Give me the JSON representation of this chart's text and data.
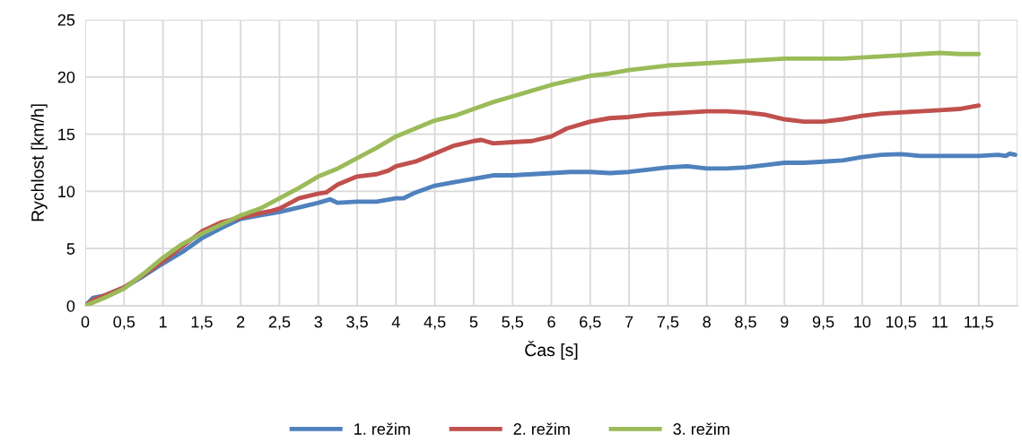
{
  "chart_data": {
    "type": "line",
    "xlabel": "Čas [s]",
    "ylabel": "Rychlost [km/h]",
    "xlim": [
      0,
      12
    ],
    "ylim": [
      0,
      25
    ],
    "yticks": [
      0,
      5,
      10,
      15,
      20,
      25
    ],
    "xticks": [
      0,
      {
        "value": 0.5,
        "label": "0,5"
      },
      1,
      {
        "value": 1.5,
        "label": "1,5"
      },
      2,
      {
        "value": 2.5,
        "label": "2,5"
      },
      3,
      {
        "value": 3.5,
        "label": "3,5"
      },
      4,
      {
        "value": 4.5,
        "label": "4,5"
      },
      5,
      {
        "value": 5.5,
        "label": "5,5"
      },
      6,
      {
        "value": 6.5,
        "label": "6,5"
      },
      7,
      {
        "value": 7.5,
        "label": "7,5"
      },
      8,
      {
        "value": 8.5,
        "label": "8,5"
      },
      9,
      {
        "value": 9.5,
        "label": "9,5"
      },
      10,
      {
        "value": 10.5,
        "label": "10,5"
      },
      11,
      {
        "value": 11.5,
        "label": "11,5"
      }
    ],
    "grid": true,
    "legend": "bottom",
    "marker": "none",
    "line_style": "solid",
    "series": [
      {
        "name": "1. režim",
        "color": "#4f81bd",
        "x": [
          0,
          0.1,
          0.25,
          0.5,
          0.75,
          1,
          1.25,
          1.5,
          1.75,
          2,
          2.25,
          2.5,
          2.75,
          3,
          3.15,
          3.25,
          3.5,
          3.75,
          4,
          4.1,
          4.25,
          4.5,
          4.75,
          5,
          5.25,
          5.5,
          5.75,
          6,
          6.25,
          6.5,
          6.75,
          7,
          7.25,
          7.5,
          7.75,
          8,
          8.25,
          8.5,
          8.75,
          9,
          9.25,
          9.5,
          9.75,
          10,
          10.25,
          10.5,
          10.75,
          11,
          11.25,
          11.5,
          11.75,
          11.85,
          11.9,
          11.97
        ],
        "values": [
          0,
          0.7,
          0.9,
          1.6,
          2.6,
          3.7,
          4.7,
          5.9,
          6.8,
          7.6,
          7.9,
          8.2,
          8.6,
          9.0,
          9.3,
          9.0,
          9.1,
          9.1,
          9.4,
          9.4,
          9.9,
          10.5,
          10.8,
          11.1,
          11.4,
          11.4,
          11.5,
          11.6,
          11.7,
          11.7,
          11.6,
          11.7,
          11.9,
          12.1,
          12.2,
          12.0,
          12.0,
          12.1,
          12.3,
          12.5,
          12.5,
          12.6,
          12.7,
          13.0,
          13.2,
          13.25,
          13.1,
          13.1,
          13.1,
          13.1,
          13.2,
          13.1,
          13.3,
          13.2
        ]
      },
      {
        "name": "2. režim",
        "color": "#c0504d",
        "x": [
          0,
          0.1,
          0.25,
          0.5,
          0.75,
          1,
          1.25,
          1.5,
          1.75,
          2,
          2.25,
          2.4,
          2.5,
          2.75,
          3,
          3.1,
          3.25,
          3.5,
          3.75,
          3.9,
          4,
          4.25,
          4.5,
          4.75,
          5,
          5.1,
          5.25,
          5.5,
          5.75,
          6,
          6.2,
          6.5,
          6.75,
          7,
          7.25,
          7.5,
          7.75,
          8,
          8.25,
          8.5,
          8.75,
          9,
          9.25,
          9.5,
          9.75,
          10,
          10.25,
          10.5,
          10.75,
          11,
          11.25,
          11.5
        ],
        "values": [
          0,
          0.5,
          0.9,
          1.6,
          2.7,
          3.9,
          5.2,
          6.5,
          7.3,
          7.7,
          8.1,
          8.3,
          8.5,
          9.4,
          9.8,
          9.9,
          10.6,
          11.3,
          11.5,
          11.8,
          12.2,
          12.6,
          13.3,
          14.0,
          14.4,
          14.5,
          14.2,
          14.3,
          14.4,
          14.8,
          15.5,
          16.1,
          16.4,
          16.5,
          16.7,
          16.8,
          16.9,
          17.0,
          17.0,
          16.9,
          16.7,
          16.3,
          16.1,
          16.1,
          16.3,
          16.6,
          16.8,
          16.9,
          17.0,
          17.1,
          17.2,
          17.5
        ]
      },
      {
        "name": "3. režim",
        "color": "#9bbb59",
        "x": [
          0,
          0.25,
          0.5,
          0.75,
          1,
          1.25,
          1.5,
          1.75,
          2,
          2.25,
          2.5,
          2.75,
          3,
          3.25,
          3.5,
          3.75,
          4,
          4.25,
          4.5,
          4.75,
          5,
          5.25,
          5.5,
          5.75,
          6,
          6.25,
          6.5,
          6.75,
          7,
          7.25,
          7.5,
          7.75,
          8,
          8.25,
          8.5,
          8.75,
          9,
          9.25,
          9.5,
          9.75,
          10,
          10.25,
          10.5,
          10.75,
          11,
          11.25,
          11.5
        ],
        "values": [
          0,
          0.7,
          1.5,
          2.8,
          4.2,
          5.4,
          6.3,
          7.1,
          7.9,
          8.5,
          9.4,
          10.3,
          11.3,
          12.0,
          12.9,
          13.8,
          14.8,
          15.5,
          16.2,
          16.6,
          17.2,
          17.8,
          18.3,
          18.8,
          19.3,
          19.7,
          20.1,
          20.3,
          20.6,
          20.8,
          21.0,
          21.1,
          21.2,
          21.3,
          21.4,
          21.5,
          21.6,
          21.6,
          21.6,
          21.6,
          21.7,
          21.8,
          21.9,
          22.0,
          22.1,
          22.0,
          22.0
        ]
      }
    ]
  }
}
